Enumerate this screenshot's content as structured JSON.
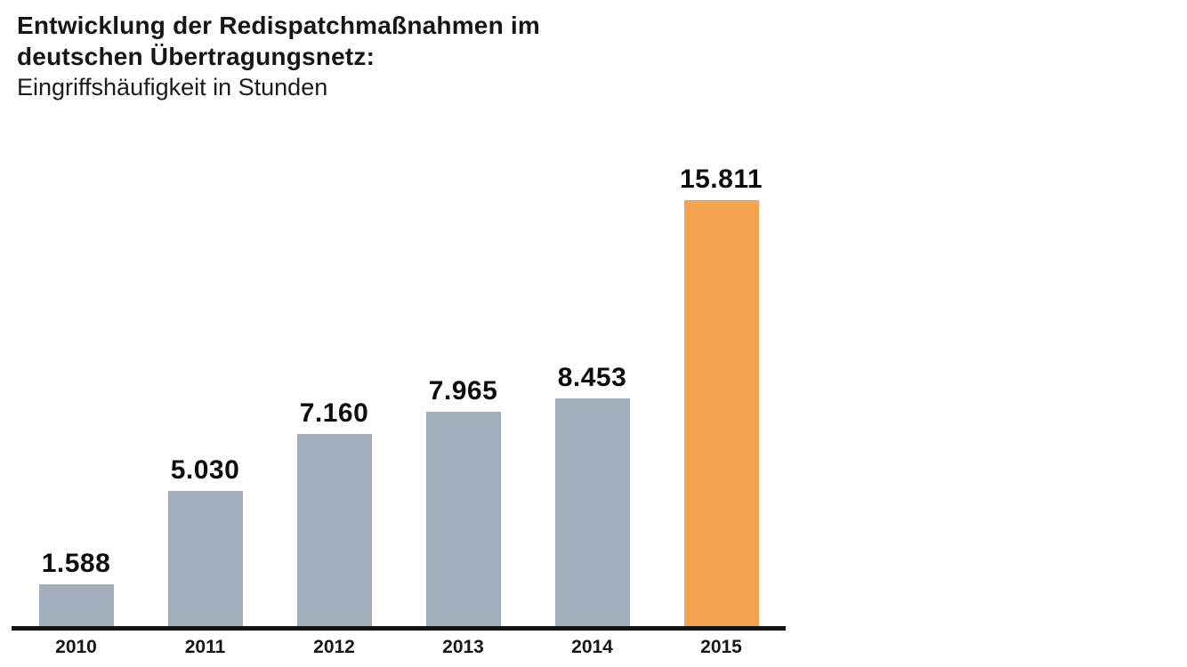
{
  "header": {
    "title_line1": "Entwicklung der Redispatchmaßnahmen im",
    "title_line2": "deutschen Übertragungsnetz:",
    "subtitle": "Eingriffshäufigkeit in Stunden"
  },
  "chart_data": {
    "type": "bar",
    "title": "Entwicklung der Redispatchmaßnahmen im deutschen Übertragungsnetz: Eingriffshäufigkeit in Stunden",
    "categories": [
      "2010",
      "2011",
      "2012",
      "2013",
      "2014",
      "2015"
    ],
    "values": [
      1588,
      5030,
      7160,
      7965,
      8453,
      15811
    ],
    "value_labels": [
      "1.588",
      "5.030",
      "7.160",
      "7.965",
      "8.453",
      "15.811"
    ],
    "xlabel": "",
    "ylabel": "Eingriffshäufigkeit in Stunden",
    "ylim": [
      0,
      15811
    ],
    "grid": false,
    "legend": "none",
    "bar_colors": [
      "#A3AEBD",
      "#A3AEBD",
      "#A3AEBD",
      "#A3AEBD",
      "#A3AEBD",
      "#F5A351"
    ],
    "highlight_category": "2015",
    "colors": {
      "bar_default": "#A3AEBD",
      "bar_highlight": "#F5A351",
      "axis": "#141414",
      "text": "#111111",
      "background": "#FFFFFF"
    }
  }
}
